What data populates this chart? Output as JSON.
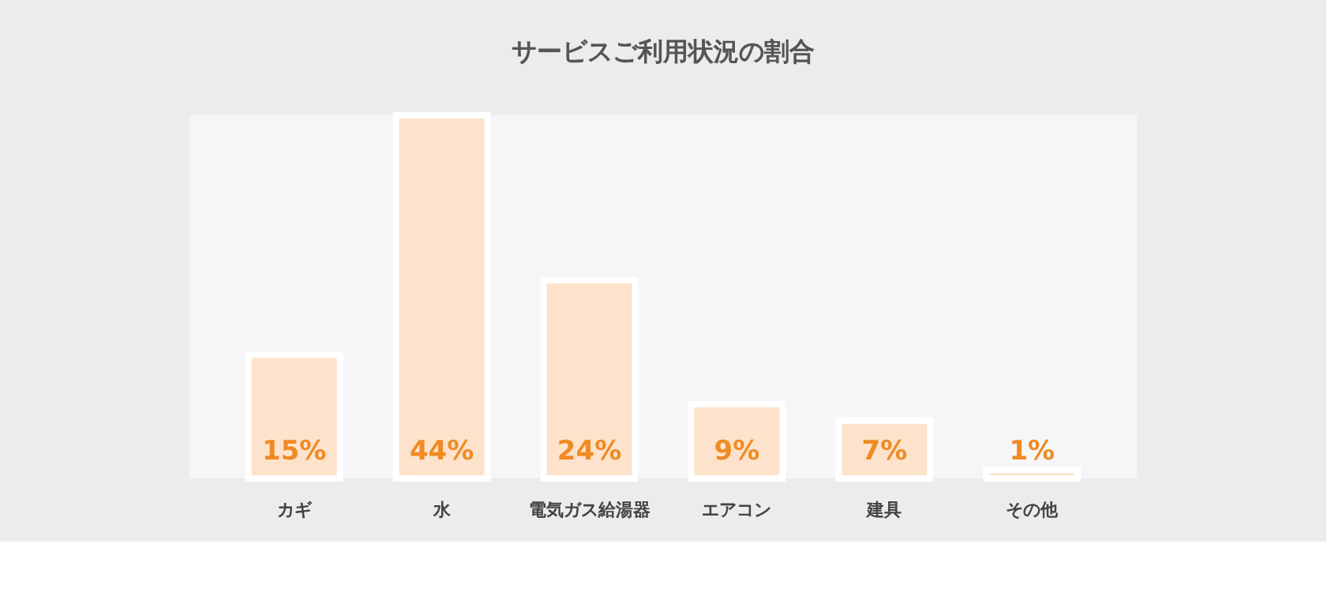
{
  "chart_data": {
    "type": "bar",
    "title": "サービスご利用状況の割合",
    "categories": [
      "カギ",
      "水",
      "電気ガス給湯器",
      "エアコン",
      "建具",
      "その他"
    ],
    "values": [
      15,
      44,
      24,
      9,
      7,
      1
    ],
    "value_labels": [
      "15%",
      "44%",
      "24%",
      "9%",
      "7%",
      "1%"
    ],
    "color": "#fde3cb",
    "grid": false
  }
}
